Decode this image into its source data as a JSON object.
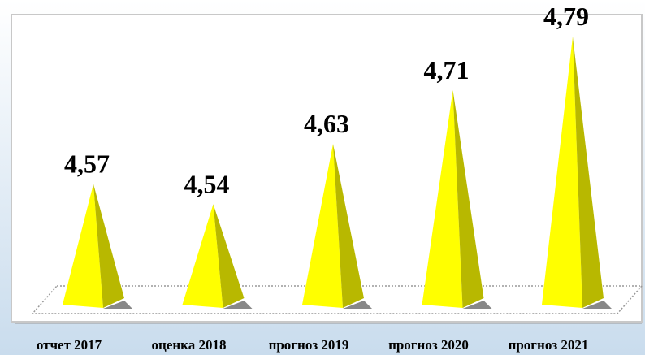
{
  "chart_data": {
    "type": "pyramid",
    "categories": [
      "отчет 2017",
      "оценка 2018",
      "прогноз 2019",
      "прогноз 2020",
      "прогноз 2021"
    ],
    "values": [
      4.57,
      4.54,
      4.63,
      4.71,
      4.79
    ],
    "value_labels": [
      "4,57",
      "4,54",
      "4,63",
      "4,71",
      "4,79"
    ],
    "color": "#ffff00"
  }
}
